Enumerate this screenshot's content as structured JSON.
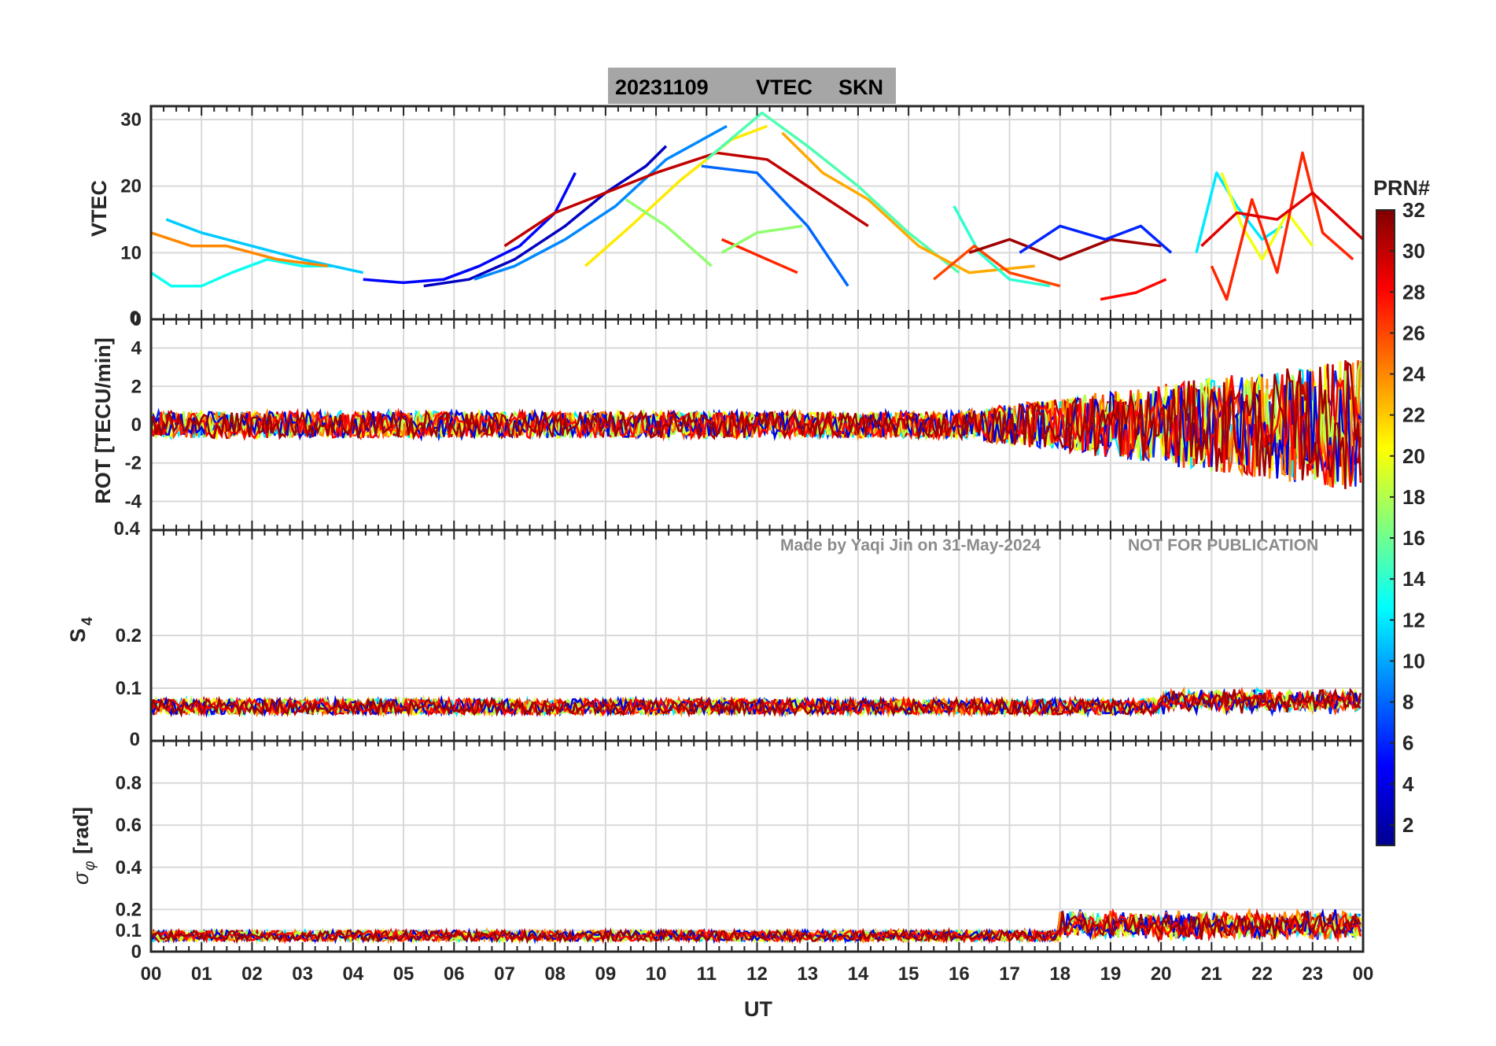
{
  "chart_data": {
    "type": "line",
    "title": {
      "date": "20231109",
      "quantity": "VTEC",
      "station": "SKN"
    },
    "xlabel": "UT",
    "x_ticks": [
      "00",
      "01",
      "02",
      "03",
      "04",
      "05",
      "06",
      "07",
      "08",
      "09",
      "10",
      "11",
      "12",
      "13",
      "14",
      "15",
      "16",
      "17",
      "18",
      "19",
      "20",
      "21",
      "22",
      "23",
      "00"
    ],
    "xlim": [
      0,
      24
    ],
    "watermark": {
      "author": "Made by Yaqi Jin on 31-May-2024",
      "notice": "NOT FOR PUBLICATION"
    },
    "colorbar": {
      "label": "PRN#",
      "range": [
        1,
        32
      ],
      "ticks": [
        2,
        4,
        6,
        8,
        10,
        12,
        14,
        16,
        18,
        20,
        22,
        24,
        26,
        28,
        30,
        32
      ]
    },
    "panels": [
      {
        "id": "vtec",
        "ylabel": "VTEC",
        "ylim": [
          0,
          32
        ],
        "yticks": [
          0,
          10,
          20,
          30
        ],
        "series": [
          {
            "prn": 13,
            "x": [
              0,
              0.4,
              1.0,
              1.6,
              2.3,
              3.0,
              3.6
            ],
            "y": [
              7,
              5,
              5,
              7,
              9,
              8,
              8
            ]
          },
          {
            "prn": 11,
            "x": [
              0.3,
              1.0,
              2.0,
              3.0,
              4.2
            ],
            "y": [
              15,
              13,
              11,
              9,
              7
            ]
          },
          {
            "prn": 24,
            "x": [
              0,
              0.8,
              1.5,
              2.5,
              3.5
            ],
            "y": [
              13,
              11,
              11,
              9,
              8
            ]
          },
          {
            "prn": 5,
            "x": [
              4.2,
              5.0,
              5.8,
              6.5,
              7.3,
              8.0,
              8.4
            ],
            "y": [
              6,
              5.5,
              6,
              8,
              11,
              16,
              22
            ]
          },
          {
            "prn": 3,
            "x": [
              5.4,
              6.3,
              7.2,
              8.2,
              9.0,
              9.8,
              10.2
            ],
            "y": [
              5,
              6,
              9,
              14,
              19,
              23,
              26
            ]
          },
          {
            "prn": 9,
            "x": [
              6.4,
              7.2,
              8.2,
              9.2,
              10.2,
              11.4
            ],
            "y": [
              6,
              8,
              12,
              17,
              24,
              29
            ]
          },
          {
            "prn": 30,
            "x": [
              7.0,
              8.0,
              9.0,
              10.0,
              11.2,
              12.2,
              13.2,
              14.2
            ],
            "y": [
              11,
              16,
              19,
              22,
              25,
              24,
              19,
              14
            ]
          },
          {
            "prn": 21,
            "x": [
              8.6,
              9.5,
              10.5,
              11.5,
              12.2
            ],
            "y": [
              8,
              14,
              21,
              27,
              29
            ]
          },
          {
            "prn": 15,
            "x": [
              11.0,
              12.1,
              13.0,
              14.0,
              15.0,
              16.0
            ],
            "y": [
              24,
              31,
              26,
              20,
              13,
              7
            ]
          },
          {
            "prn": 23,
            "x": [
              12.5,
              13.3,
              14.2,
              15.2,
              16.2,
              17.5
            ],
            "y": [
              28,
              22,
              18,
              11,
              7,
              8
            ]
          },
          {
            "prn": 8,
            "x": [
              10.9,
              12.0,
              13.0,
              13.8
            ],
            "y": [
              23,
              22,
              14,
              5
            ]
          },
          {
            "prn": 27,
            "x": [
              11.3,
              12.2,
              12.8
            ],
            "y": [
              12,
              9,
              7
            ]
          },
          {
            "prn": 17,
            "x": [
              9.4,
              10.2,
              11.1
            ],
            "y": [
              18,
              14,
              8
            ]
          },
          {
            "prn": 17,
            "x": [
              11.3,
              12.0,
              12.9
            ],
            "y": [
              10,
              13,
              14
            ]
          },
          {
            "prn": 14,
            "x": [
              15.9,
              16.4,
              17.0,
              17.8
            ],
            "y": [
              17,
              10,
              6,
              5
            ]
          },
          {
            "prn": 26,
            "x": [
              15.5,
              16.3,
              17.0,
              18.0
            ],
            "y": [
              6,
              11,
              7,
              5
            ]
          },
          {
            "prn": 31,
            "x": [
              16.2,
              17.0,
              18.0,
              19.0,
              20.0
            ],
            "y": [
              10,
              12,
              9,
              12,
              11
            ]
          },
          {
            "prn": 6,
            "x": [
              17.2,
              18.0,
              18.9,
              19.6,
              20.2
            ],
            "y": [
              10,
              14,
              12,
              14,
              10
            ]
          },
          {
            "prn": 28,
            "x": [
              18.8,
              19.5,
              20.1
            ],
            "y": [
              3,
              4,
              6
            ]
          },
          {
            "prn": 12,
            "x": [
              20.7,
              21.1,
              21.5,
              22.0,
              22.4
            ],
            "y": [
              10,
              22,
              17,
              12,
              14
            ]
          },
          {
            "prn": 20,
            "x": [
              21.2,
              21.6,
              22.0,
              22.5,
              23.0
            ],
            "y": [
              22,
              14,
              9,
              16,
              11
            ]
          },
          {
            "prn": 27,
            "x": [
              21.0,
              21.3,
              21.8,
              22.3,
              22.8,
              23.2,
              23.8
            ],
            "y": [
              8,
              3,
              18,
              7,
              25,
              13,
              9
            ]
          },
          {
            "prn": 29,
            "x": [
              20.8,
              21.5,
              22.3,
              23.0,
              24.0
            ],
            "y": [
              11,
              16,
              15,
              19,
              12
            ]
          }
        ]
      },
      {
        "id": "rot",
        "ylabel": "ROT [TECU/min]",
        "ylim": [
          -5.5,
          5.5
        ],
        "yticks": [
          -4,
          -2,
          0,
          2,
          4
        ],
        "yticks_shown": [
          -4,
          -2,
          0,
          2,
          4
        ],
        "edge_labels": [
          "0.4"
        ]
      },
      {
        "id": "s4",
        "ylabel": "S4",
        "ylim": [
          0,
          0.4
        ],
        "yticks": [
          0,
          0.1,
          0.2
        ],
        "yticks_shown": [
          0.1,
          0.2
        ]
      },
      {
        "id": "sigma_phi",
        "ylabel": "σφ [rad]",
        "ylim": [
          0,
          1.0
        ],
        "yticks": [
          0,
          0.1,
          0.2,
          0.4,
          0.6,
          0.8
        ],
        "yticks_shown": [
          0,
          0.1,
          0.2,
          0.4,
          0.6,
          0.8
        ]
      }
    ]
  },
  "labels": {
    "edge_rot_top": "0",
    "edge_rot_bottom": "0.4",
    "edge_s4_bottom": "0",
    "sigma_symbol": "σ",
    "phi_symbol": "φ",
    "rad_unit": "[rad]",
    "s4_S": "S",
    "s4_sub": "4"
  }
}
